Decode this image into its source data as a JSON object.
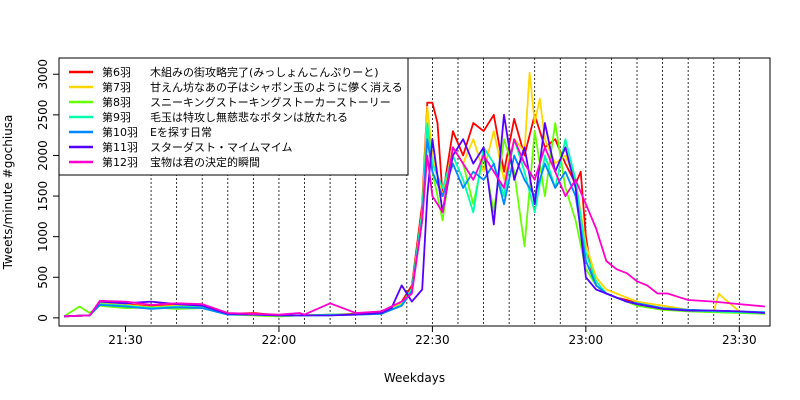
{
  "chart_data": {
    "type": "line",
    "title": "",
    "xlabel": "Weekdays",
    "ylabel": "Tweets/minute #gochiusa",
    "xlim": [
      -3,
      136
    ],
    "ylim": [
      -100,
      3200
    ],
    "x_unit": "minutes after 21:20",
    "x_ticks": [
      {
        "x": 10,
        "label": "21:30"
      },
      {
        "x": 40,
        "label": "22:00"
      },
      {
        "x": 70,
        "label": "22:30"
      },
      {
        "x": 100,
        "label": "23:00"
      },
      {
        "x": 130,
        "label": "23:30"
      }
    ],
    "y_ticks": [
      0,
      500,
      1000,
      1500,
      2000,
      2500,
      3000
    ],
    "event_markers": [
      15,
      20,
      25,
      30,
      35,
      40,
      45,
      50,
      55,
      60,
      65,
      70,
      75,
      80,
      85,
      90,
      95,
      100,
      105,
      110,
      115,
      120,
      125,
      130
    ],
    "legend_position": "top-left",
    "series": [
      {
        "name": "第6羽",
        "subtitle": "木組みの街攻略完了(みっしょんこんぷりーと)",
        "color": "#ff0000",
        "x": [
          -2,
          3,
          5,
          10,
          15,
          20,
          25,
          30,
          35,
          40,
          45,
          50,
          55,
          60,
          64,
          66,
          68,
          69,
          70,
          71,
          72,
          74,
          76,
          78,
          80,
          82,
          84,
          86,
          88,
          90,
          92,
          94,
          96,
          98,
          99,
          100,
          101,
          102,
          104,
          106,
          108,
          110,
          115,
          120,
          125,
          130,
          135
        ],
        "y": [
          20,
          30,
          200,
          170,
          140,
          160,
          150,
          50,
          60,
          30,
          30,
          40,
          50,
          60,
          200,
          400,
          1400,
          2650,
          2650,
          2400,
          1500,
          2300,
          2000,
          2400,
          2300,
          2500,
          1800,
          2450,
          2000,
          2500,
          2100,
          2200,
          1900,
          1650,
          1800,
          1000,
          600,
          400,
          300,
          250,
          220,
          180,
          120,
          100,
          80,
          70,
          60
        ]
      },
      {
        "name": "第7羽",
        "subtitle": "甘えん坊なあの子はシャボン玉のように儚く消える",
        "color": "#ffd700",
        "x": [
          -2,
          3,
          5,
          10,
          15,
          20,
          25,
          30,
          35,
          40,
          45,
          50,
          55,
          60,
          64,
          66,
          68,
          69,
          70,
          72,
          74,
          76,
          78,
          80,
          82,
          84,
          86,
          88,
          89,
          90,
          91,
          92,
          94,
          96,
          98,
          100,
          102,
          104,
          106,
          108,
          110,
          115,
          120,
          125,
          126,
          127,
          130,
          135
        ],
        "y": [
          20,
          30,
          180,
          160,
          130,
          150,
          140,
          50,
          50,
          30,
          30,
          40,
          40,
          60,
          180,
          350,
          1300,
          2600,
          2000,
          1500,
          2100,
          1900,
          2200,
          1800,
          2300,
          1700,
          2200,
          2050,
          3020,
          2400,
          2700,
          2200,
          1900,
          2000,
          1700,
          900,
          500,
          350,
          300,
          250,
          200,
          150,
          100,
          80,
          300,
          240,
          80,
          60
        ]
      },
      {
        "name": "第8羽",
        "subtitle": "スニーキングストーキングストーカーストーリー",
        "color": "#66ff00",
        "x": [
          -2,
          1,
          3,
          5,
          10,
          15,
          20,
          25,
          30,
          35,
          40,
          45,
          50,
          55,
          60,
          64,
          66,
          68,
          69,
          70,
          72,
          74,
          76,
          78,
          80,
          82,
          84,
          86,
          88,
          90,
          92,
          94,
          96,
          98,
          100,
          102,
          104,
          106,
          108,
          110,
          115,
          120,
          125,
          130,
          135
        ],
        "y": [
          20,
          140,
          60,
          150,
          120,
          130,
          110,
          120,
          40,
          30,
          20,
          30,
          40,
          40,
          50,
          150,
          350,
          1200,
          2300,
          1800,
          1200,
          2100,
          1900,
          1400,
          2000,
          1300,
          2200,
          1800,
          880,
          2300,
          1500,
          2400,
          1600,
          1200,
          600,
          400,
          300,
          250,
          200,
          150,
          100,
          80,
          70,
          60,
          50
        ]
      },
      {
        "name": "第9羽",
        "subtitle": "毛玉は特攻し無慈悲なボタンは放たれる",
        "color": "#00ffaa",
        "x": [
          -2,
          3,
          5,
          10,
          15,
          20,
          25,
          30,
          35,
          40,
          45,
          50,
          55,
          60,
          64,
          66,
          68,
          69,
          70,
          72,
          74,
          76,
          78,
          80,
          82,
          84,
          86,
          88,
          90,
          92,
          94,
          96,
          98,
          100,
          102,
          104,
          106,
          108,
          110,
          115,
          120,
          125,
          130,
          135
        ],
        "y": [
          20,
          30,
          170,
          150,
          120,
          140,
          130,
          50,
          40,
          30,
          30,
          40,
          40,
          50,
          160,
          360,
          1300,
          2400,
          1900,
          1600,
          2000,
          1700,
          1300,
          2100,
          1900,
          1500,
          2200,
          1800,
          1300,
          2000,
          1600,
          2200,
          1700,
          800,
          450,
          300,
          250,
          200,
          180,
          120,
          90,
          80,
          70,
          60
        ]
      },
      {
        "name": "第10羽",
        "subtitle": "Eを探す日常",
        "color": "#0088ff",
        "x": [
          -2,
          3,
          5,
          10,
          15,
          20,
          25,
          30,
          35,
          40,
          45,
          50,
          55,
          60,
          64,
          66,
          68,
          69,
          70,
          72,
          74,
          76,
          78,
          80,
          82,
          84,
          86,
          88,
          90,
          92,
          94,
          96,
          98,
          100,
          102,
          104,
          106,
          108,
          110,
          115,
          120,
          125,
          130,
          135
        ],
        "y": [
          20,
          30,
          160,
          140,
          110,
          130,
          120,
          40,
          40,
          30,
          30,
          30,
          40,
          50,
          150,
          330,
          1200,
          2200,
          1800,
          1500,
          1900,
          1600,
          1800,
          1700,
          1900,
          1400,
          2000,
          1700,
          1500,
          1900,
          1600,
          1800,
          1500,
          700,
          400,
          300,
          250,
          200,
          180,
          120,
          100,
          90,
          80,
          70
        ]
      },
      {
        "name": "第11羽",
        "subtitle": "スターダスト・マイムマイム",
        "color": "#5500ff",
        "x": [
          -2,
          3,
          5,
          10,
          15,
          20,
          25,
          30,
          35,
          40,
          45,
          50,
          55,
          60,
          62,
          64,
          66,
          68,
          69,
          70,
          72,
          74,
          76,
          78,
          80,
          82,
          84,
          86,
          88,
          90,
          92,
          94,
          96,
          98,
          100,
          102,
          104,
          106,
          108,
          110,
          115,
          120,
          125,
          130,
          135
        ],
        "y": [
          20,
          30,
          200,
          180,
          200,
          170,
          150,
          50,
          40,
          30,
          30,
          30,
          40,
          60,
          120,
          400,
          200,
          350,
          1500,
          2200,
          1300,
          2000,
          2200,
          1900,
          2100,
          1150,
          2500,
          1700,
          2100,
          1400,
          2400,
          1800,
          2100,
          1600,
          500,
          350,
          300,
          250,
          200,
          170,
          110,
          90,
          90,
          80,
          60
        ]
      },
      {
        "name": "第12羽",
        "subtitle": "宝物は君の決定的瞬間",
        "color": "#ff00cc",
        "x": [
          -2,
          3,
          5,
          10,
          15,
          20,
          25,
          30,
          35,
          40,
          44,
          45,
          50,
          55,
          60,
          64,
          66,
          68,
          69,
          70,
          72,
          74,
          76,
          78,
          80,
          82,
          84,
          86,
          88,
          90,
          92,
          94,
          96,
          98,
          100,
          102,
          104,
          106,
          108,
          110,
          112,
          114,
          116,
          118,
          120,
          125,
          130,
          135
        ],
        "y": [
          20,
          30,
          210,
          200,
          160,
          180,
          170,
          60,
          50,
          40,
          60,
          40,
          180,
          60,
          80,
          200,
          300,
          1200,
          2000,
          1500,
          1300,
          2100,
          1900,
          1700,
          2000,
          1800,
          1600,
          2200,
          1900,
          1700,
          2100,
          1800,
          1500,
          1700,
          1400,
          1100,
          700,
          600,
          550,
          450,
          400,
          300,
          300,
          260,
          220,
          200,
          170,
          140
        ]
      }
    ]
  }
}
